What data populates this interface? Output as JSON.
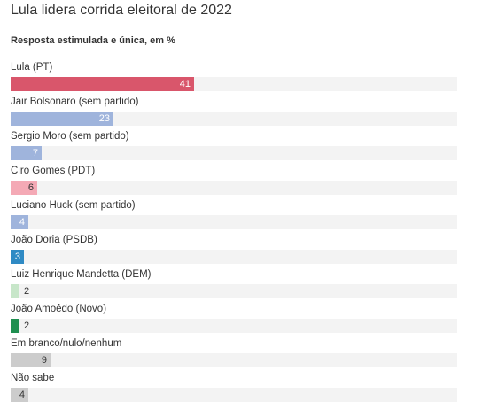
{
  "chart_data": {
    "type": "bar",
    "orientation": "horizontal",
    "title": "Lula lidera corrida eleitoral de 2022",
    "subtitle": "Resposta estimulada e única, em %",
    "xlim": [
      0,
      100
    ],
    "grid": false,
    "categories": [
      "Lula (PT)",
      "Jair Bolsonaro (sem partido)",
      "Sergio Moro (sem partido)",
      "Ciro Gomes (PDT)",
      "Luciano Huck (sem partido)",
      "João Doria (PSDB)",
      "Luiz Henrique Mandetta (DEM)",
      "João Amoêdo (Novo)",
      "Em branco/nulo/nenhum",
      "Não sabe"
    ],
    "values": [
      41,
      23,
      7,
      6,
      4,
      3,
      2,
      2,
      9,
      4
    ],
    "colors": [
      "#d9566b",
      "#9fb4dc",
      "#9fb4dc",
      "#f4a9b5",
      "#9fb4dc",
      "#2f8ac4",
      "#c7e6c9",
      "#1f8f50",
      "#cccccc",
      "#cccccc"
    ]
  }
}
